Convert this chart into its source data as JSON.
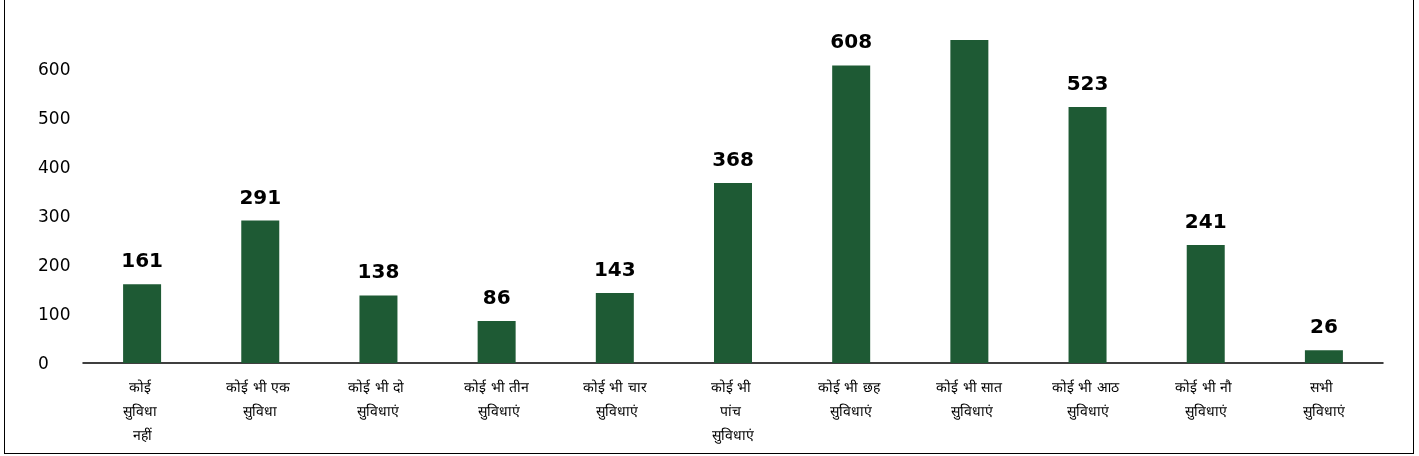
{
  "chart_data": {
    "type": "bar",
    "categories": [
      "कोई सुविधा नहीं",
      "कोई भी एक सुविधा",
      "कोई भी दो सुविधाएं",
      "कोई भी तीन सुविधाएं",
      "कोई भी चार सुविधाएं",
      "कोई भी पांच सुविधाएं",
      "कोई भी छह सुविधाएं",
      "कोई भी सात सुविधाएं",
      "कोई भी आठ सुविधाएं",
      "कोई भी नौ सुविधाएं",
      "सभी सुविधाएं"
    ],
    "values": [
      161,
      291,
      138,
      86,
      143,
      368,
      608,
      660,
      523,
      241,
      26
    ],
    "value_labels": [
      "161",
      "291",
      "138",
      "86",
      "143",
      "368",
      "608",
      null,
      "523",
      "241",
      "26"
    ],
    "color": "#1e5a34",
    "ylim": [
      0,
      660
    ],
    "yticks": [
      0,
      100,
      200,
      300,
      400,
      500,
      600
    ],
    "grid": false
  }
}
